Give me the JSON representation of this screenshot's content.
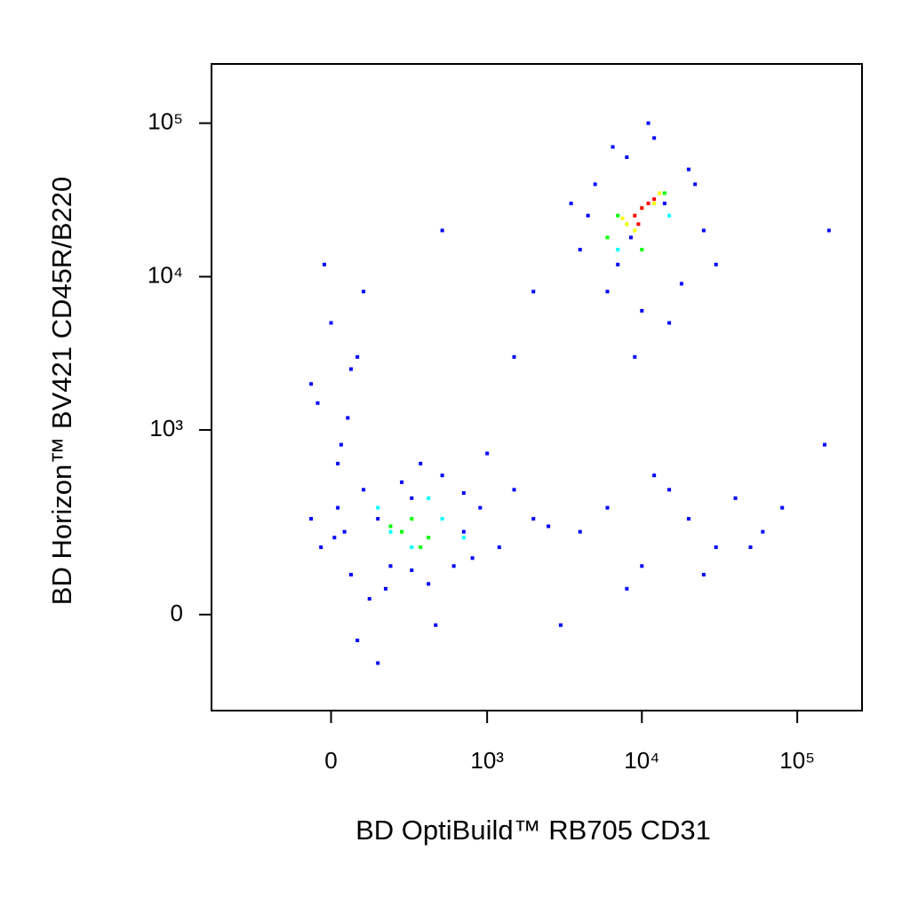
{
  "chart_data": {
    "type": "scatter",
    "xlabel": "BD OptiBuild™ RB705 CD31",
    "ylabel": "BD Horizon™ BV421 CD45R/B220",
    "xscale": "biexponential",
    "yscale": "biexponential",
    "xlim": [
      -571,
      261000
    ],
    "ylim": [
      -251,
      243000
    ],
    "xticks": [
      0,
      {
        "value": 1000,
        "label": "10³"
      },
      {
        "value": 10000,
        "label": "10⁴"
      },
      {
        "value": 100000,
        "label": "10⁵"
      }
    ],
    "yticks": [
      0,
      {
        "value": 1000,
        "label": "10³"
      },
      {
        "value": 10000,
        "label": "10⁴"
      },
      {
        "value": 100000,
        "label": "10⁵"
      }
    ],
    "series": [
      {
        "color": "#0000ff",
        "x": [
          -30,
          20,
          60,
          100,
          150,
          200,
          300,
          400,
          500,
          700,
          900,
          1200,
          1500,
          2000,
          80,
          120,
          350,
          600,
          40,
          250,
          180,
          800,
          1000,
          450,
          -60,
          10,
          300,
          150,
          700,
          2500,
          4000,
          5000,
          6000,
          8000,
          12000,
          15000,
          20000,
          25000,
          7000,
          9000,
          11000,
          4500,
          30000,
          6500,
          14000,
          18000,
          3500,
          10000,
          22000,
          8500,
          4000,
          6000,
          10000,
          15000,
          20000,
          30000,
          40000,
          60000,
          80000,
          8000,
          12000,
          25000,
          50000,
          3000,
          -40,
          0,
          30,
          60,
          -20,
          80,
          100,
          20,
          50,
          -60,
          160000,
          150000,
          2000,
          1500,
          500
        ],
        "values": [
          150,
          300,
          80,
          400,
          250,
          100,
          350,
          60,
          500,
          200,
          300,
          150,
          400,
          250,
          -50,
          30,
          600,
          100,
          200,
          450,
          50,
          120,
          700,
          -20,
          250,
          180,
          90,
          -100,
          380,
          220,
          15000,
          40000,
          8000,
          60000,
          80000,
          5000,
          50000,
          20000,
          12000,
          3000,
          100000,
          25000,
          12000,
          70000,
          30000,
          9000,
          30000,
          6000,
          40000,
          18000,
          200,
          300,
          100,
          400,
          250,
          150,
          350,
          200,
          300,
          50,
          500,
          80,
          150,
          -20,
          1500,
          5000,
          800,
          2500,
          12000,
          3000,
          8000,
          600,
          1200,
          2000,
          20000,
          800,
          8000,
          3000,
          20000
        ]
      },
      {
        "color": "#00ffff",
        "x": [
          200,
          300,
          500,
          150,
          700,
          400,
          9000,
          12000,
          7000,
          15000
        ],
        "values": [
          200,
          150,
          250,
          300,
          180,
          350,
          20000,
          30000,
          15000,
          25000
        ]
      },
      {
        "color": "#00ff00",
        "x": [
          250,
          300,
          400,
          200,
          350,
          6000,
          8000,
          11000,
          14000,
          7000,
          10000
        ],
        "values": [
          200,
          250,
          180,
          220,
          150,
          18000,
          22000,
          30000,
          35000,
          25000,
          15000
        ]
      },
      {
        "color": "#ffff00",
        "x": [
          8000,
          10000,
          12000,
          9000,
          13000,
          7500
        ],
        "values": [
          22000,
          28000,
          30000,
          20000,
          35000,
          24000
        ]
      },
      {
        "color": "#ff0000",
        "x": [
          9000,
          10000,
          11000,
          12000,
          9500
        ],
        "values": [
          25000,
          28000,
          30000,
          32000,
          22000
        ]
      }
    ]
  }
}
